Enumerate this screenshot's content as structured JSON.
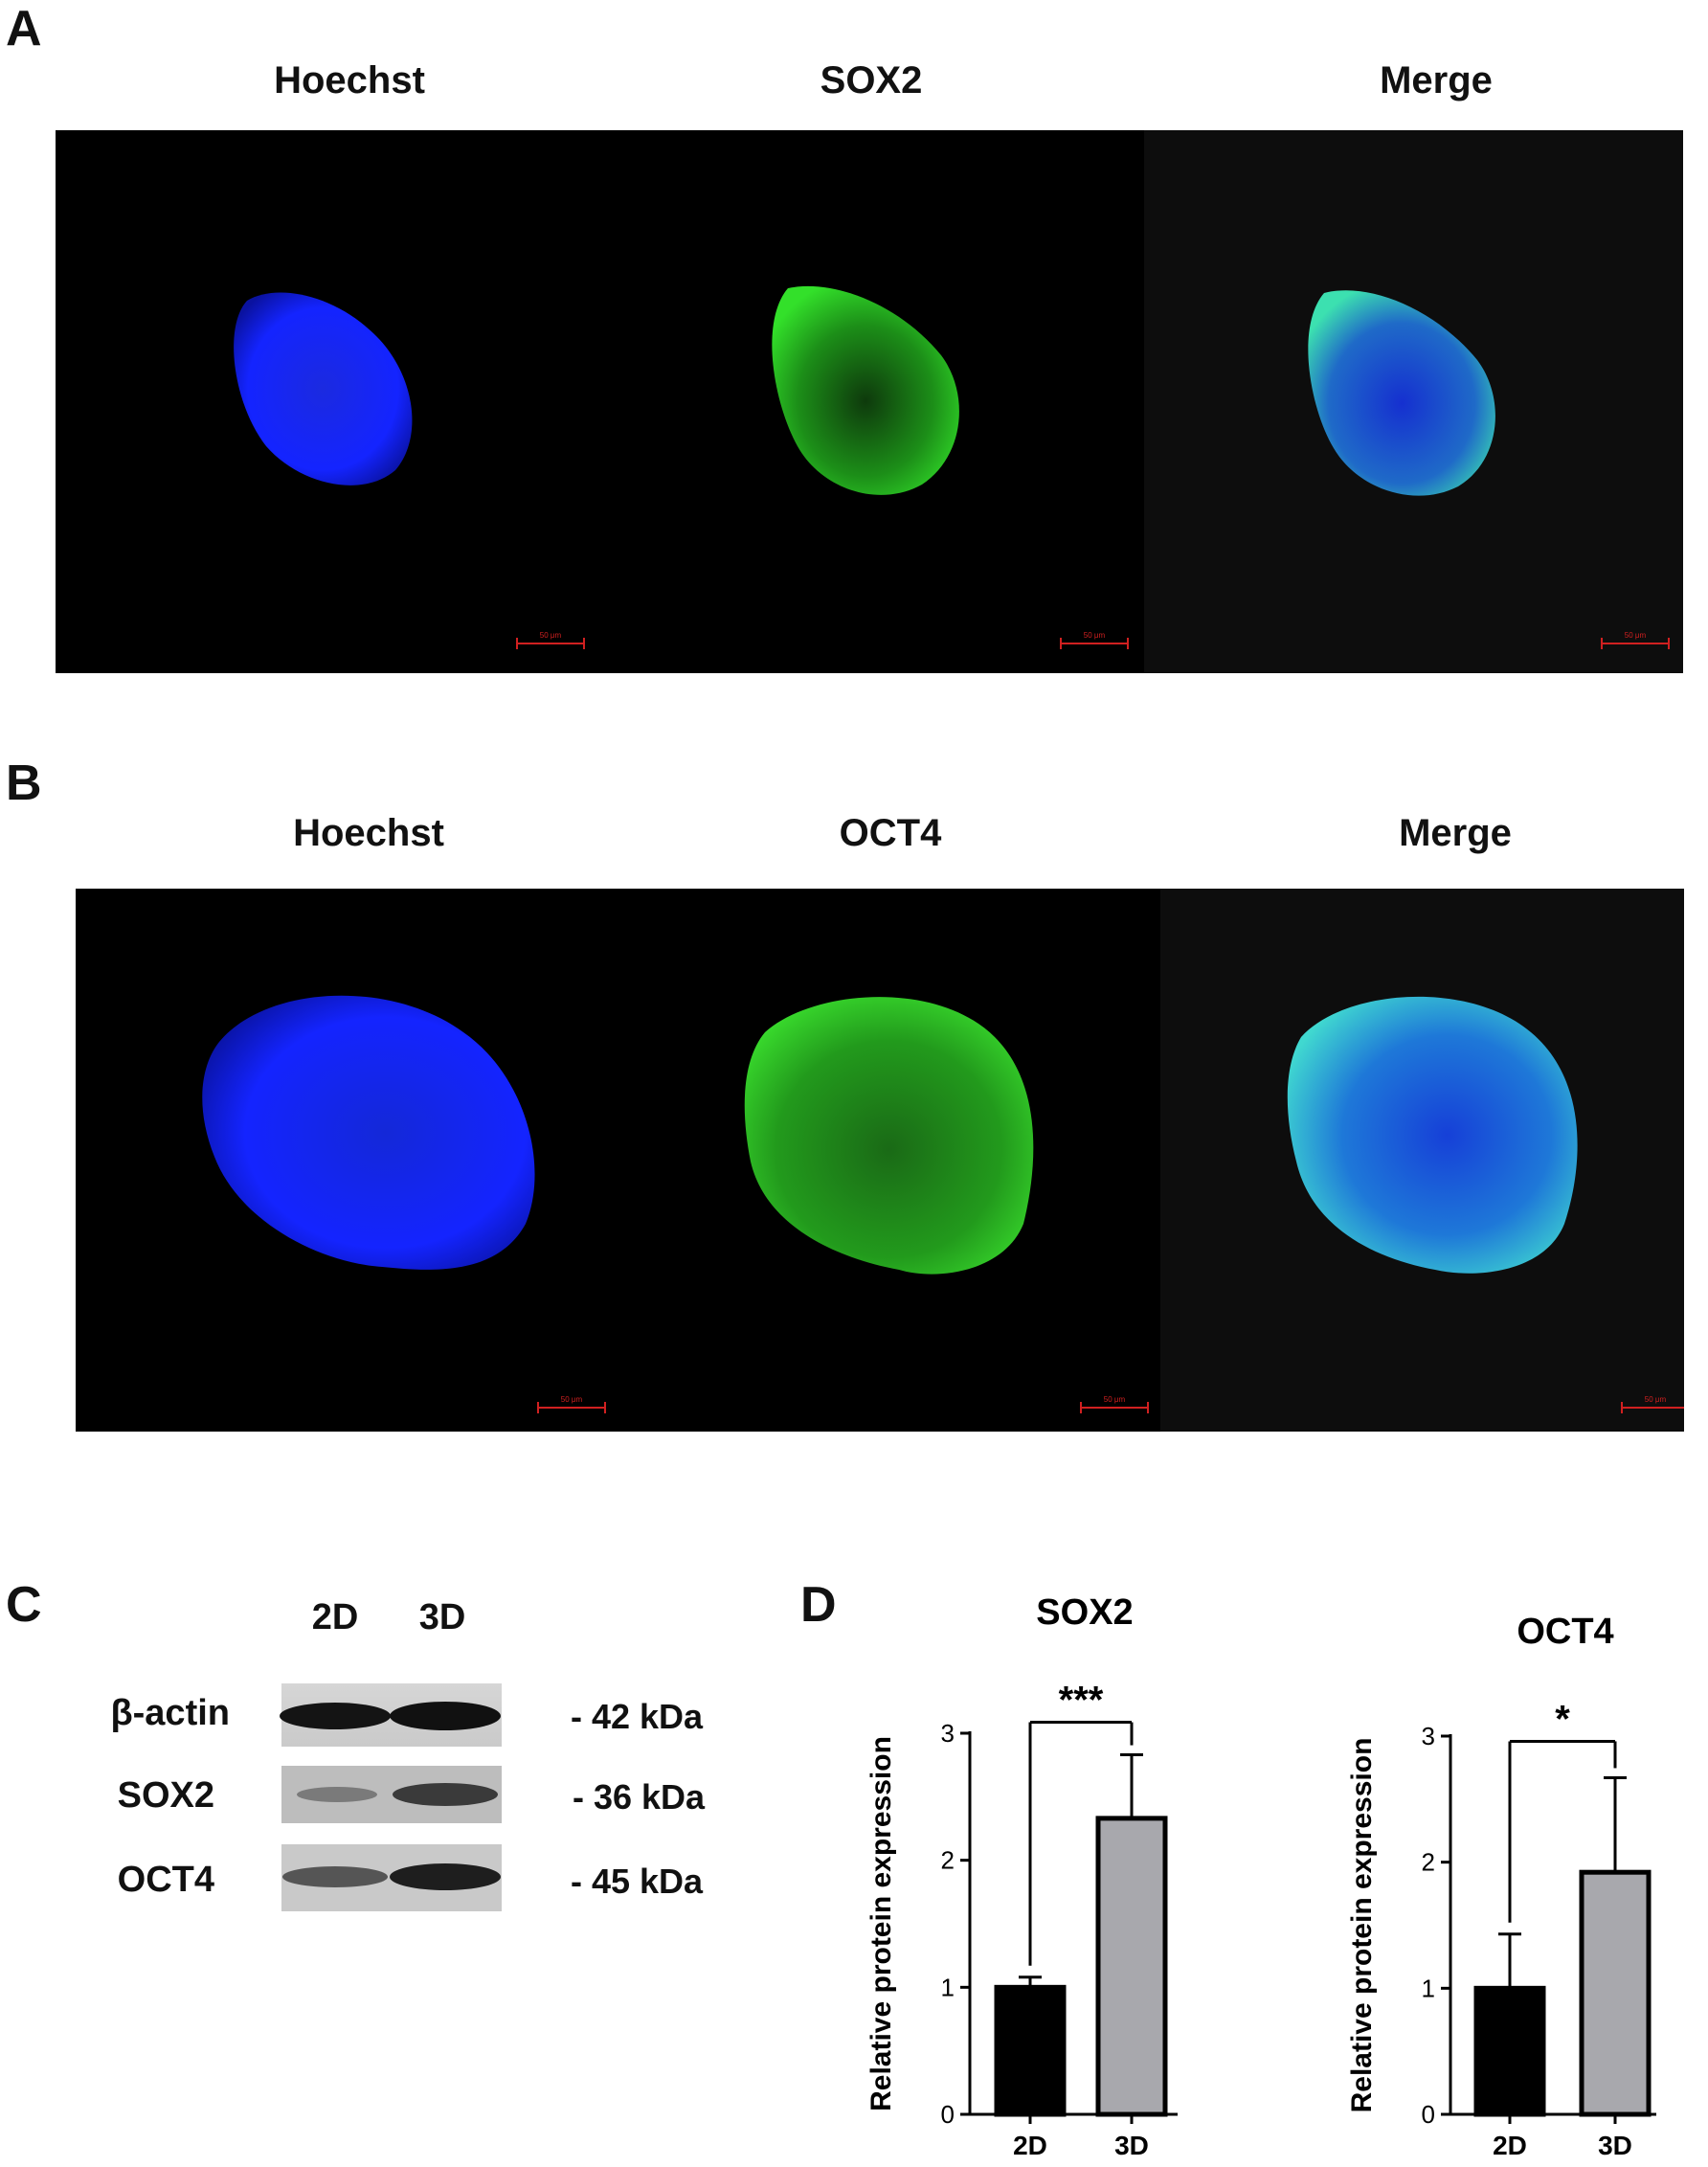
{
  "panel_a": {
    "label": "A",
    "columns": [
      "Hoechst",
      "SOX2",
      "Merge"
    ],
    "scale_bar": "50 μm"
  },
  "panel_b": {
    "label": "B",
    "columns": [
      "Hoechst",
      "OCT4",
      "Merge"
    ],
    "scale_bar": "50 μm"
  },
  "panel_c": {
    "label": "C",
    "lanes": [
      "2D",
      "3D"
    ],
    "rows": [
      {
        "name": "β-actin",
        "size": "- 42 kDa"
      },
      {
        "name": "SOX2",
        "size": "- 36 kDa"
      },
      {
        "name": "OCT4",
        "size": "- 45 kDa"
      }
    ]
  },
  "panel_d": {
    "label": "D"
  },
  "colors": {
    "hoechst": "#1a2cff",
    "green": "#22c01a",
    "bar_2d": "#000000",
    "bar_3d": "#a8a8ad"
  },
  "chart_data": [
    {
      "type": "bar",
      "title": "SOX2",
      "ylabel": "Relative protein expression",
      "categories": [
        "2D",
        "3D"
      ],
      "values": [
        1.0,
        2.33
      ],
      "errors": [
        0.08,
        0.5
      ],
      "ylim": [
        0,
        3
      ],
      "yticks": [
        "0",
        "1",
        "2",
        "3"
      ],
      "significance": "***"
    },
    {
      "type": "bar",
      "title": "OCT4",
      "ylabel": "Relative protein expression",
      "categories": [
        "2D",
        "3D"
      ],
      "values": [
        1.0,
        1.92
      ],
      "errors": [
        0.43,
        0.75
      ],
      "ylim": [
        0,
        3
      ],
      "yticks": [
        "0",
        "1",
        "2",
        "3"
      ],
      "significance": "*"
    }
  ]
}
